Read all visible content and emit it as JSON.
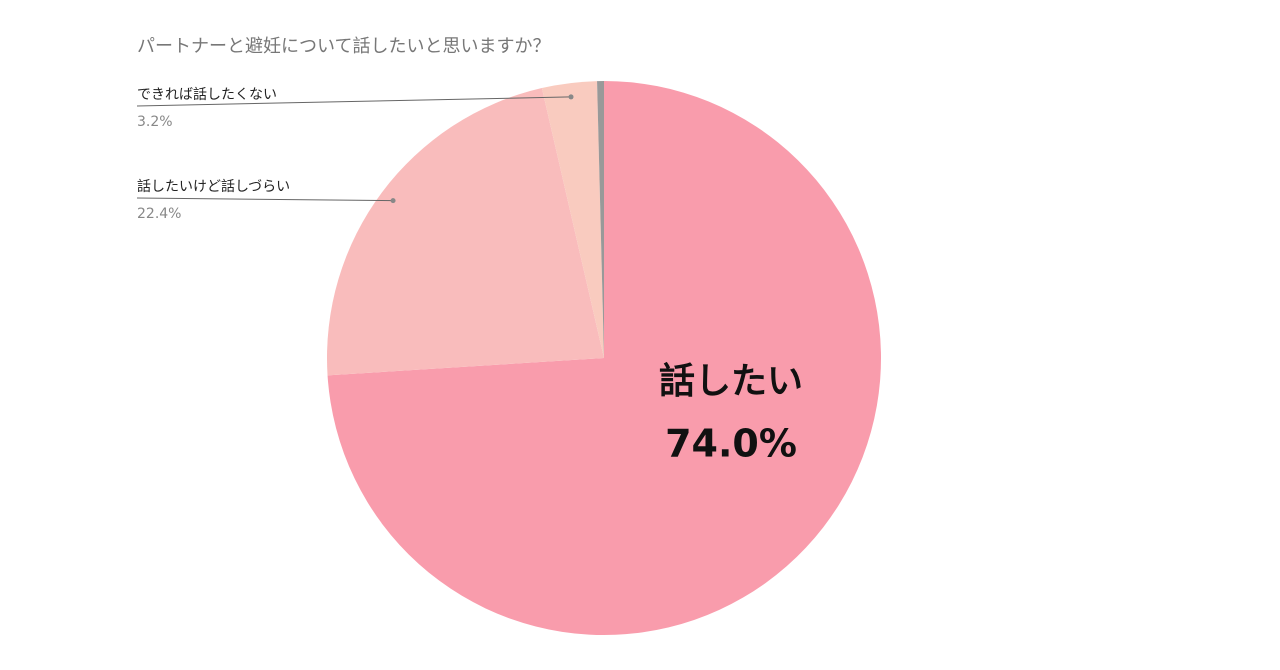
{
  "chart_data": {
    "type": "pie",
    "title": "パートナーと避妊について話したいと思いますか？",
    "categories": [
      "話したい",
      "話したいけど話しづらい",
      "できれば話したくない",
      null
    ],
    "values": [
      74.0,
      22.4,
      3.2,
      0.4
    ],
    "value_labels": [
      "74.0%",
      "22.4%",
      "3.2%",
      null
    ],
    "colors": [
      "#f99cac",
      "#f9bcbc",
      "#f9cbbf",
      "#999999"
    ]
  }
}
